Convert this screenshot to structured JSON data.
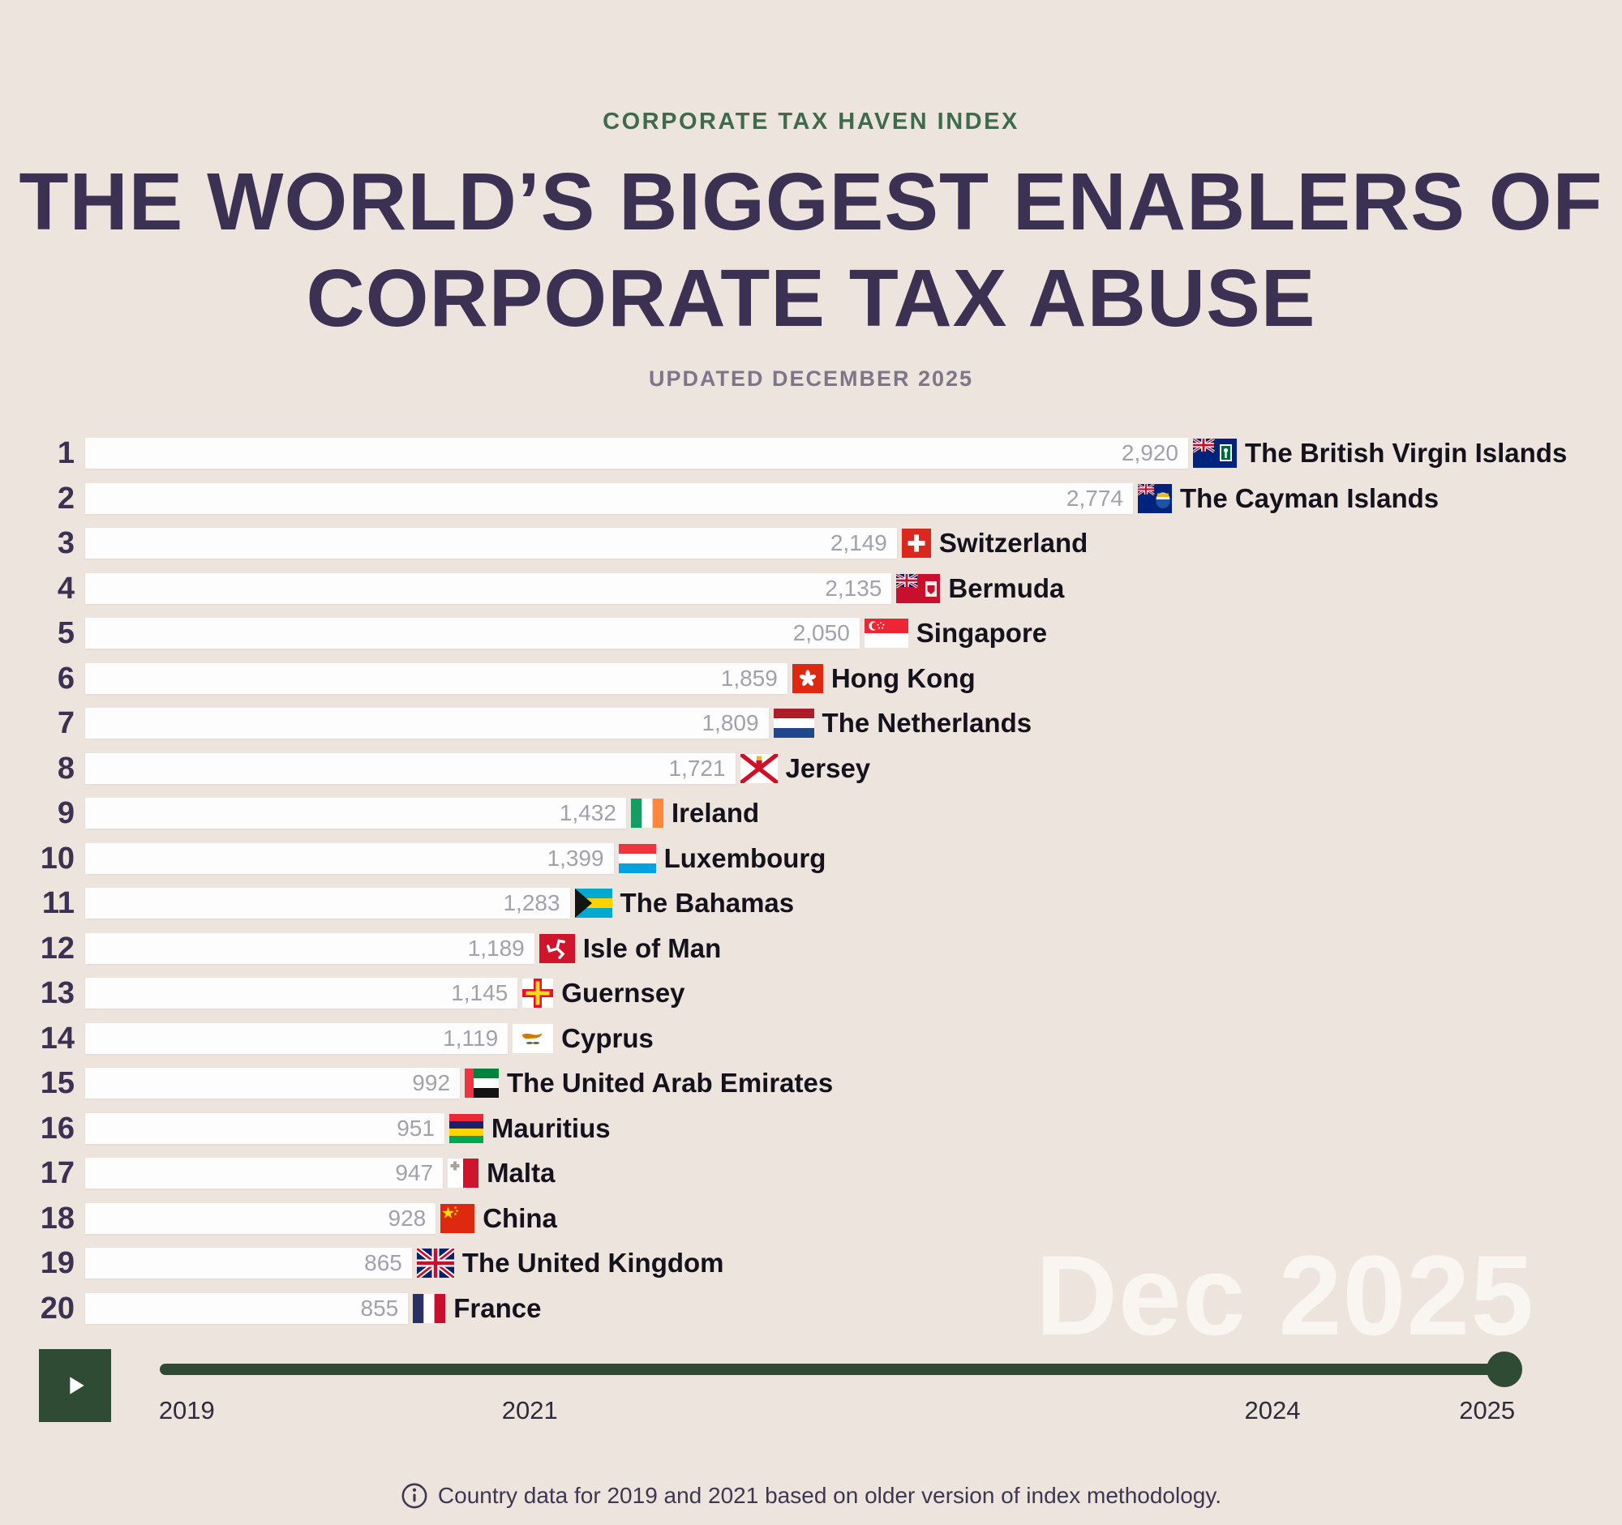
{
  "header": {
    "kicker": "CORPORATE TAX HAVEN INDEX",
    "title_line1": "THE WORLD’S BIGGEST ENABLERS OF",
    "title_line2": "CORPORATE TAX ABUSE",
    "subtitle": "UPDATED DECEMBER 2025"
  },
  "chart_data": {
    "type": "bar",
    "orientation": "horizontal",
    "title": "The world’s biggest enablers of corporate tax abuse",
    "subtitle": "Corporate Tax Haven Index — updated December 2025",
    "current_period_label": "Dec 2025",
    "xlim": [
      0,
      2920
    ],
    "grid": false,
    "legend": "none",
    "categories": [
      "The British Virgin Islands",
      "The Cayman Islands",
      "Switzerland",
      "Bermuda",
      "Singapore",
      "Hong Kong",
      "The Netherlands",
      "Jersey",
      "Ireland",
      "Luxembourg",
      "The Bahamas",
      "Isle of Man",
      "Guernsey",
      "Cyprus",
      "The United Arab Emirates",
      "Mauritius",
      "Malta",
      "China",
      "The United Kingdom",
      "France"
    ],
    "values": [
      2920,
      2774,
      2149,
      2135,
      2050,
      1859,
      1809,
      1721,
      1432,
      1399,
      1283,
      1189,
      1145,
      1119,
      992,
      951,
      947,
      928,
      865,
      855
    ],
    "rows": [
      {
        "rank": "1",
        "country": "The British Virgin Islands",
        "value": 2920,
        "value_label": "2,920",
        "flag": "bvi"
      },
      {
        "rank": "2",
        "country": "The Cayman Islands",
        "value": 2774,
        "value_label": "2,774",
        "flag": "cayman"
      },
      {
        "rank": "3",
        "country": "Switzerland",
        "value": 2149,
        "value_label": "2,149",
        "flag": "switzerland"
      },
      {
        "rank": "4",
        "country": "Bermuda",
        "value": 2135,
        "value_label": "2,135",
        "flag": "bermuda"
      },
      {
        "rank": "5",
        "country": "Singapore",
        "value": 2050,
        "value_label": "2,050",
        "flag": "singapore"
      },
      {
        "rank": "6",
        "country": "Hong Kong",
        "value": 1859,
        "value_label": "1,859",
        "flag": "hongkong"
      },
      {
        "rank": "7",
        "country": "The Netherlands",
        "value": 1809,
        "value_label": "1,809",
        "flag": "netherlands"
      },
      {
        "rank": "8",
        "country": "Jersey",
        "value": 1721,
        "value_label": "1,721",
        "flag": "jersey"
      },
      {
        "rank": "9",
        "country": "Ireland",
        "value": 1432,
        "value_label": "1,432",
        "flag": "ireland"
      },
      {
        "rank": "10",
        "country": "Luxembourg",
        "value": 1399,
        "value_label": "1,399",
        "flag": "luxembourg"
      },
      {
        "rank": "11",
        "country": "The Bahamas",
        "value": 1283,
        "value_label": "1,283",
        "flag": "bahamas"
      },
      {
        "rank": "12",
        "country": "Isle of Man",
        "value": 1189,
        "value_label": "1,189",
        "flag": "isleofman"
      },
      {
        "rank": "13",
        "country": "Guernsey",
        "value": 1145,
        "value_label": "1,145",
        "flag": "guernsey"
      },
      {
        "rank": "14",
        "country": "Cyprus",
        "value": 1119,
        "value_label": "1,119",
        "flag": "cyprus"
      },
      {
        "rank": "15",
        "country": "The United Arab Emirates",
        "value": 992,
        "value_label": "992",
        "flag": "uae"
      },
      {
        "rank": "16",
        "country": "Mauritius",
        "value": 951,
        "value_label": "951",
        "flag": "mauritius"
      },
      {
        "rank": "17",
        "country": "Malta",
        "value": 947,
        "value_label": "947",
        "flag": "malta"
      },
      {
        "rank": "18",
        "country": "China",
        "value": 928,
        "value_label": "928",
        "flag": "china"
      },
      {
        "rank": "19",
        "country": "The United Kingdom",
        "value": 865,
        "value_label": "865",
        "flag": "uk"
      },
      {
        "rank": "20",
        "country": "France",
        "value": 855,
        "value_label": "855",
        "flag": "france"
      }
    ]
  },
  "timeline": {
    "play_icon": "play-icon",
    "ticks": [
      {
        "label": "2019",
        "pos_pct": 2.0
      },
      {
        "label": "2021",
        "pos_pct": 27.4
      },
      {
        "label": "2024",
        "pos_pct": 82.4
      },
      {
        "label": "2025",
        "pos_pct": 98.3
      }
    ],
    "handle_pos_pct": 99.6
  },
  "footnote": {
    "icon": "info-icon",
    "text": "Country data for 2019 and 2021 based on older version of index methodology."
  },
  "colors": {
    "background": "#ece4dd",
    "bar": "#fdfdfd",
    "title": "#3a3153",
    "kicker": "#3e6b4b",
    "subtitle": "#7d7689",
    "rank": "#3a3153",
    "value": "#a3a0ac",
    "country": "#14121c",
    "green": "#2f4b34",
    "period": "#f9f5f0",
    "tick": "#2e2b3b",
    "footnote": "#3d3751"
  }
}
